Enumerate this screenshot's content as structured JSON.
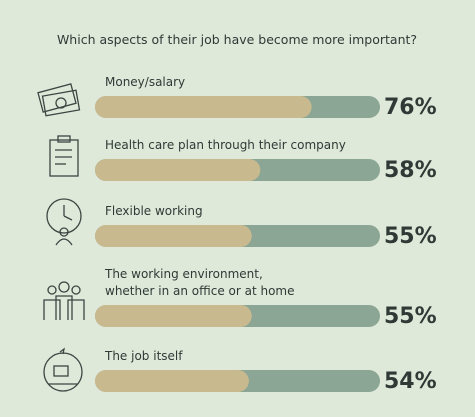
{
  "chart_data": {
    "type": "bar",
    "orientation": "horizontal",
    "title": "Which aspects of their job have become more important?",
    "categories": [
      "Money/salary",
      "Health care plan through their company",
      "Flexible working",
      "The working environment,\nwhether in an office or at home",
      "The job itself"
    ],
    "values": [
      76,
      58,
      55,
      55,
      54
    ],
    "value_labels": [
      "76%",
      "58%",
      "55%",
      "55%",
      "54%"
    ],
    "color": "#c9b98f",
    "track_color": "#8ba694",
    "xlim": [
      0,
      100
    ]
  }
}
